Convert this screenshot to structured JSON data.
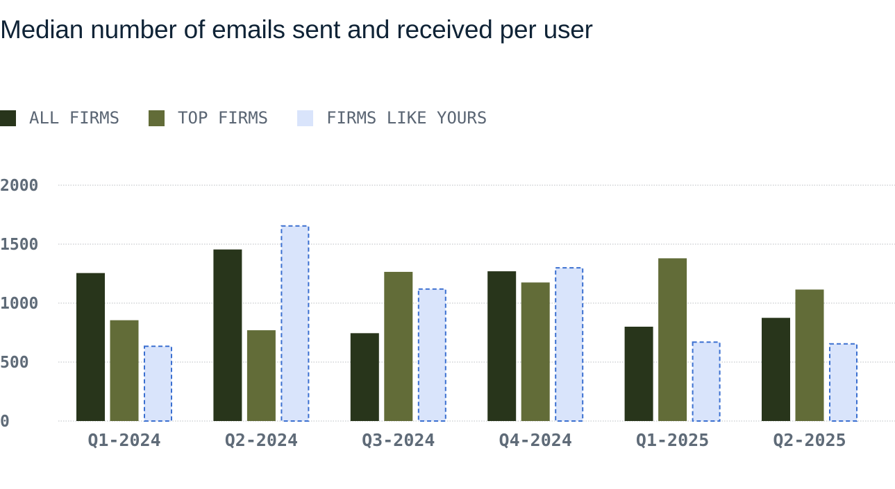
{
  "title": "Median number of emails sent and received per user",
  "colors": {
    "all_firms": "#28351b",
    "top_firms": "#626c38",
    "firms_like_yours": "#d9e4fb",
    "firms_like_yours_border": "#3a6fd0",
    "grid": "#b8bcc0",
    "tick": "#5f6b78"
  },
  "legend": [
    {
      "label": "ALL FIRMS",
      "color": "#28351b"
    },
    {
      "label": "TOP FIRMS",
      "color": "#626c38"
    },
    {
      "label": "FIRMS LIKE YOURS",
      "color": "#d9e4fb"
    }
  ],
  "chart_data": {
    "type": "bar",
    "categories": [
      "Q1-2024",
      "Q2-2024",
      "Q3-2024",
      "Q4-2024",
      "Q1-2025",
      "Q2-2025"
    ],
    "series": [
      {
        "name": "ALL FIRMS",
        "values": [
          1255,
          1455,
          745,
          1270,
          800,
          875
        ]
      },
      {
        "name": "TOP FIRMS",
        "values": [
          855,
          770,
          1265,
          1175,
          1380,
          1115
        ]
      },
      {
        "name": "FIRMS LIKE YOURS",
        "values": [
          640,
          1660,
          1125,
          1305,
          675,
          660
        ]
      }
    ],
    "yticks": [
      "0",
      "500",
      "1000",
      "1500",
      "2000"
    ],
    "ylim": [
      0,
      2000
    ],
    "grid": true,
    "legend_position": "top-left"
  }
}
